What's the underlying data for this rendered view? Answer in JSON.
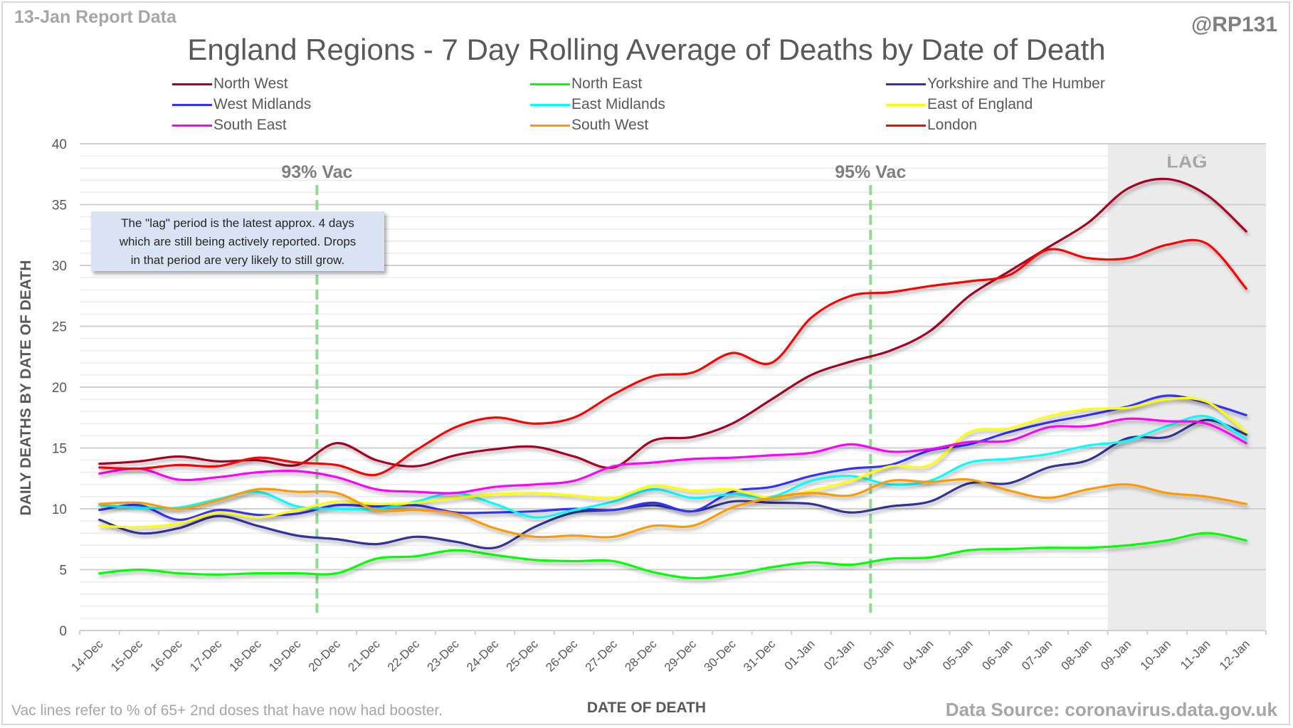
{
  "header": {
    "report_tag": "13-Jan Report Data",
    "handle": "@RP131"
  },
  "footer": {
    "footnote": "Vac lines refer to % of 65+ 2nd doses that have now had booster.",
    "source": "Data Source: coronavirus.data.gov.uk"
  },
  "note_box": {
    "lines": [
      "The \"lag\" period is the latest approx. 4 days",
      "which are still being actively reported.  Drops",
      "in that period are very likely to still grow."
    ]
  },
  "chart_data": {
    "type": "line",
    "title": "England Regions - 7 Day Rolling Average of Deaths by Date of Death",
    "xlabel": "DATE OF DEATH",
    "ylabel": "DAILY DEATHS BY DATE OF DEATH",
    "ylim": [
      0,
      40
    ],
    "yticks": [
      0,
      5,
      10,
      15,
      20,
      25,
      30,
      35,
      40
    ],
    "grid": true,
    "minor_grid_step": 1,
    "legend_position": "top",
    "categories": [
      "14-Dec",
      "15-Dec",
      "16-Dec",
      "17-Dec",
      "18-Dec",
      "19-Dec",
      "20-Dec",
      "21-Dec",
      "22-Dec",
      "23-Dec",
      "24-Dec",
      "25-Dec",
      "26-Dec",
      "27-Dec",
      "28-Dec",
      "29-Dec",
      "30-Dec",
      "31-Dec",
      "01-Jan",
      "02-Jan",
      "03-Jan",
      "04-Jan",
      "05-Jan",
      "06-Jan",
      "07-Jan",
      "08-Jan",
      "09-Jan",
      "10-Jan",
      "11-Jan",
      "12-Jan"
    ],
    "series": [
      {
        "name": "North West",
        "color": "#a50021",
        "values": [
          13.7,
          13.9,
          14.3,
          13.9,
          14.0,
          13.6,
          15.4,
          14.0,
          13.5,
          14.4,
          14.9,
          15.1,
          14.3,
          13.4,
          15.6,
          15.9,
          17.0,
          19.0,
          21.0,
          22.1,
          23.0,
          24.6,
          27.5,
          29.5,
          31.5,
          33.5,
          36.3,
          37.1,
          35.8,
          32.8
        ]
      },
      {
        "name": "North East",
        "color": "#00ff00",
        "values": [
          4.7,
          5.0,
          4.7,
          4.6,
          4.7,
          4.7,
          4.7,
          5.9,
          6.1,
          6.6,
          6.2,
          5.8,
          5.7,
          5.7,
          4.8,
          4.3,
          4.6,
          5.2,
          5.6,
          5.4,
          5.9,
          6.0,
          6.6,
          6.7,
          6.8,
          6.8,
          7.0,
          7.4,
          8.0,
          7.4
        ]
      },
      {
        "name": "Yorkshire and The Humber",
        "color": "#333399",
        "values": [
          9.1,
          8.0,
          8.4,
          9.4,
          8.6,
          7.8,
          7.5,
          7.1,
          7.7,
          7.3,
          6.8,
          8.5,
          9.7,
          9.9,
          10.3,
          9.8,
          10.6,
          10.5,
          10.4,
          9.7,
          10.2,
          10.6,
          12.1,
          12.1,
          13.4,
          14.0,
          15.8,
          15.9,
          17.3,
          16.1
        ]
      },
      {
        "name": "West Midlands",
        "color": "#3333ff",
        "values": [
          9.9,
          10.3,
          9.1,
          9.9,
          9.5,
          9.6,
          10.3,
          10.2,
          10.3,
          9.7,
          9.7,
          9.8,
          10.0,
          9.9,
          10.5,
          9.8,
          11.4,
          11.8,
          12.7,
          13.3,
          13.6,
          14.8,
          15.3,
          16.3,
          17.1,
          17.7,
          18.4,
          19.3,
          18.7,
          17.7
        ]
      },
      {
        "name": "East Midlands",
        "color": "#00ffff",
        "values": [
          10.3,
          10.1,
          10.1,
          10.8,
          11.4,
          10.2,
          10.0,
          10.0,
          10.6,
          11.3,
          10.4,
          9.3,
          9.9,
          10.6,
          11.6,
          10.9,
          11.2,
          11.0,
          12.3,
          12.7,
          12.0,
          12.3,
          13.8,
          14.1,
          14.5,
          15.2,
          15.6,
          16.8,
          17.6,
          15.7
        ]
      },
      {
        "name": "East of England",
        "color": "#ffff00",
        "values": [
          8.6,
          8.5,
          8.8,
          9.7,
          9.3,
          9.9,
          10.6,
          10.4,
          10.5,
          10.9,
          11.2,
          11.3,
          11.1,
          10.9,
          11.9,
          11.5,
          11.6,
          10.9,
          11.5,
          12.3,
          13.5,
          13.6,
          16.3,
          16.6,
          17.6,
          18.2,
          18.3,
          19.0,
          18.8,
          16.3
        ]
      },
      {
        "name": "South East",
        "color": "#ff00ff",
        "values": [
          12.9,
          13.3,
          12.4,
          12.6,
          13.0,
          13.1,
          12.6,
          11.6,
          11.4,
          11.3,
          11.8,
          12.0,
          12.3,
          13.5,
          13.8,
          14.1,
          14.2,
          14.4,
          14.6,
          15.3,
          14.7,
          14.9,
          15.5,
          15.6,
          16.7,
          16.8,
          17.4,
          17.2,
          17.0,
          15.4
        ]
      },
      {
        "name": "South West",
        "color": "#ff9900",
        "values": [
          10.4,
          10.5,
          10.0,
          10.7,
          11.6,
          11.4,
          11.3,
          9.9,
          9.9,
          9.6,
          8.4,
          7.7,
          7.8,
          7.7,
          8.6,
          8.6,
          10.1,
          10.9,
          11.3,
          11.1,
          12.3,
          12.2,
          12.4,
          11.5,
          10.9,
          11.6,
          12.0,
          11.3,
          11.0,
          10.4
        ]
      },
      {
        "name": "London",
        "color": "#ff0000",
        "values": [
          13.4,
          13.3,
          13.6,
          13.5,
          14.2,
          13.8,
          13.6,
          12.8,
          14.8,
          16.7,
          17.5,
          17.0,
          17.5,
          19.4,
          20.9,
          21.2,
          22.8,
          22.0,
          25.7,
          27.5,
          27.8,
          28.3,
          28.7,
          29.2,
          31.3,
          30.6,
          30.6,
          31.7,
          31.8,
          28.1
        ]
      }
    ],
    "annotations": [
      {
        "type": "vline",
        "label": "93% Vac",
        "at": 5.5,
        "color": "#92d995"
      },
      {
        "type": "vline",
        "label": "95% Vac",
        "at": 19.5,
        "color": "#92d995"
      },
      {
        "type": "shaded_region",
        "label": "LAG",
        "from": "09-Jan",
        "to": "12-Jan",
        "color": "#ebebeb"
      }
    ]
  }
}
